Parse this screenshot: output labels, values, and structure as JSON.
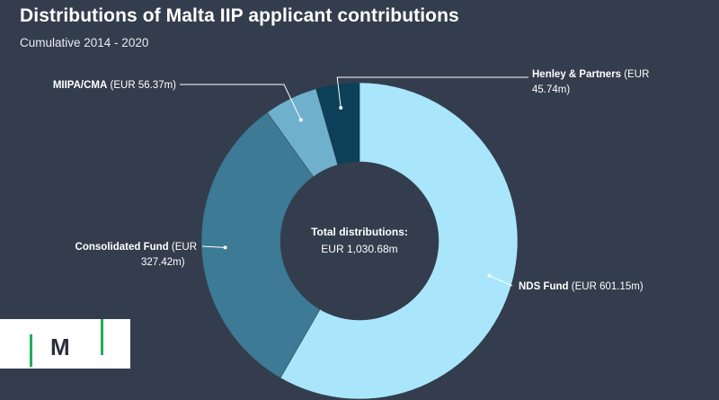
{
  "title": "Distributions of Malta IIP applicant contributions",
  "subtitle": "Cumulative 2014 - 2020",
  "center": {
    "line1": "Total distributions:",
    "line2": "EUR 1,030.68m"
  },
  "logo": {
    "text": "|M|",
    "colors": {
      "bar": "#1fae5b",
      "letter": "#2a2f3a"
    }
  },
  "chart_data": {
    "type": "pie",
    "title": "Distributions of Malta IIP applicant contributions",
    "subtitle": "Cumulative 2014 - 2020",
    "total_label": "Total distributions:",
    "total_value_label": "EUR 1,030.68m",
    "slices": [
      {
        "name": "NDS Fund",
        "value": 601.15,
        "value_label": "(EUR 601.15m)",
        "label_lines": [
          "NDS Fund",
          "(EUR 601.15m)"
        ],
        "color": "#a9e6fb"
      },
      {
        "name": "Consolidated Fund",
        "value": 327.42,
        "value_label": "(EUR 327.42m)",
        "label_lines": [
          "Consolidated Fund",
          "(EUR",
          "327.42m)"
        ],
        "color": "#3c7a95"
      },
      {
        "name": "MIIPA/CMA",
        "value": 56.37,
        "value_label": "(EUR 56.37m)",
        "label_lines": [
          "MIIPA/CMA",
          "(EUR 56.37m)"
        ],
        "color": "#6fb1cc"
      },
      {
        "name": "Henley & Partners",
        "value": 45.74,
        "value_label": "(EUR 45.74m)",
        "label_lines": [
          "Henley & Partners",
          "(EUR",
          "45.74m)"
        ],
        "color": "#0b4058"
      }
    ]
  }
}
